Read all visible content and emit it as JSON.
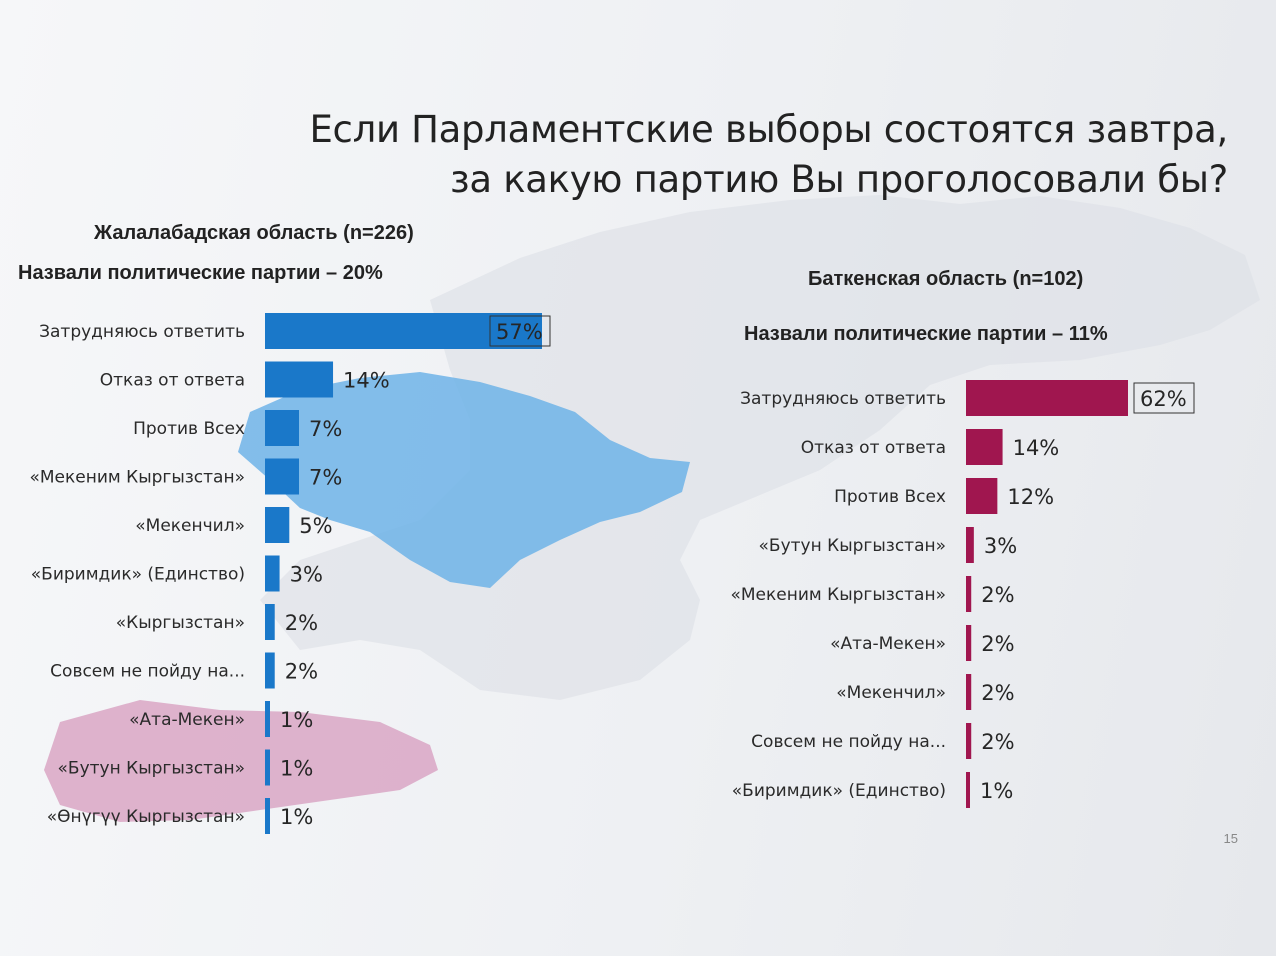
{
  "title_line_1": "Если Парламентские выборы состоятся завтра,",
  "title_line_2": "за какую партию Вы проголосовали бы?",
  "page_number": "15",
  "colors": {
    "left_bar": "#1a78c9",
    "right_bar": "#a0164f",
    "left_map": "#6fb3e8",
    "left_map_pink": "#d9a6c4",
    "map_gray": "#dde1e6"
  },
  "left": {
    "region": "Жалалабадская область (n=226)",
    "subtitle": "Назвали политические партии – 20%"
  },
  "right": {
    "region": "Баткенская область (n=102)",
    "subtitle": "Назвали политические партии – 11%"
  },
  "chart_data": [
    {
      "type": "bar",
      "orientation": "horizontal",
      "title": "Жалалабадская область (n=226)",
      "categories": [
        "Затрудняюсь ответить",
        "Отказ от ответа",
        "Против Всех",
        "«Мекеним Кыргызстан»",
        "«Мекенчил»",
        "«Биримдик» (Единство)",
        "«Кыргызстан»",
        "Совсем не пойду на...",
        "«Ата-Мекен»",
        "«Бутун Кыргызстан»",
        "«Өнүгүү Кыргызстан»"
      ],
      "values": [
        57,
        14,
        7,
        7,
        5,
        3,
        2,
        2,
        1,
        1,
        1
      ],
      "value_labels": [
        "57%",
        "14%",
        "7%",
        "7%",
        "5%",
        "3%",
        "2%",
        "2%",
        "1%",
        "1%",
        "1%"
      ],
      "unit": "%",
      "xlim": [
        0,
        57
      ]
    },
    {
      "type": "bar",
      "orientation": "horizontal",
      "title": "Баткенская область (n=102)",
      "categories": [
        "Затрудняюсь ответить",
        "Отказ от ответа",
        "Против Всех",
        "«Бутун Кыргызстан»",
        "«Мекеним Кыргызстан»",
        "«Ата-Мекен»",
        "«Мекенчил»",
        "Совсем не пойду на...",
        "«Биримдик» (Единство)"
      ],
      "values": [
        62,
        14,
        12,
        3,
        2,
        2,
        2,
        2,
        1
      ],
      "value_labels": [
        "62%",
        "14%",
        "12%",
        "3%",
        "2%",
        "2%",
        "2%",
        "2%",
        "1%"
      ],
      "unit": "%",
      "xlim": [
        0,
        62
      ]
    }
  ]
}
